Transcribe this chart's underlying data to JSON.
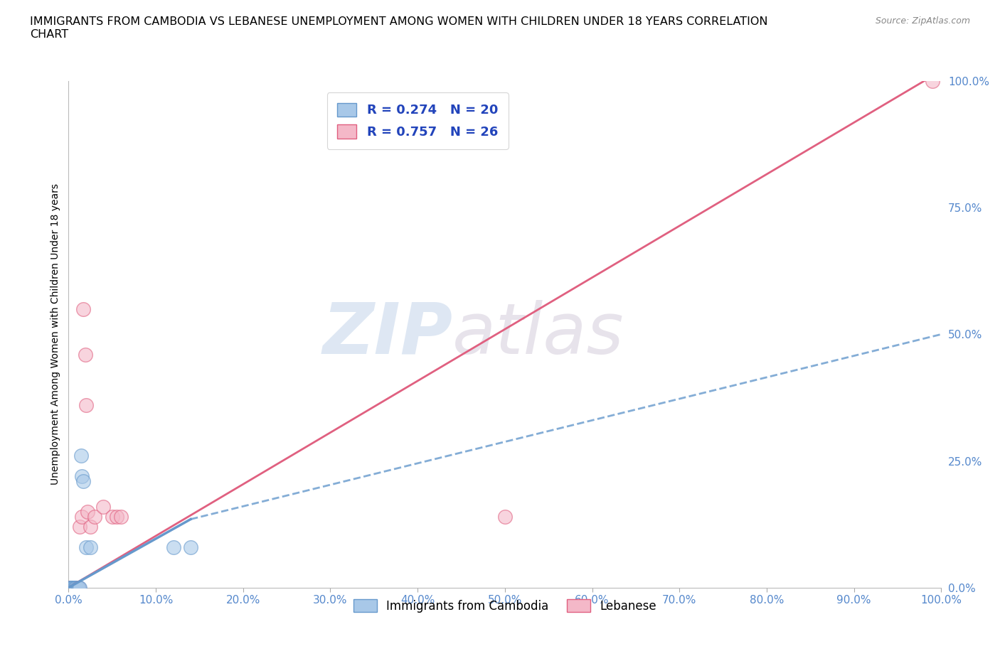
{
  "title": "IMMIGRANTS FROM CAMBODIA VS LEBANESE UNEMPLOYMENT AMONG WOMEN WITH CHILDREN UNDER 18 YEARS CORRELATION\nCHART",
  "source": "Source: ZipAtlas.com",
  "ylabel": "Unemployment Among Women with Children Under 18 years",
  "xlim": [
    0,
    1.0
  ],
  "ylim": [
    0,
    1.0
  ],
  "xticks": [
    0.0,
    0.1,
    0.2,
    0.3,
    0.4,
    0.5,
    0.6,
    0.7,
    0.8,
    0.9,
    1.0
  ],
  "yticks_right": [
    0.0,
    0.25,
    0.5,
    0.75,
    1.0
  ],
  "background_color": "#ffffff",
  "watermark_zip": "ZIP",
  "watermark_atlas": "atlas",
  "cambodia_color": "#a8c8e8",
  "lebanese_color": "#f4b8c8",
  "cambodia_edge": "#6699cc",
  "lebanese_edge": "#e06080",
  "cambodia_scatter": [
    [
      0.001,
      0.0
    ],
    [
      0.002,
      0.0
    ],
    [
      0.003,
      0.0
    ],
    [
      0.004,
      0.0
    ],
    [
      0.005,
      0.0
    ],
    [
      0.006,
      0.0
    ],
    [
      0.007,
      0.0
    ],
    [
      0.008,
      0.0
    ],
    [
      0.009,
      0.0
    ],
    [
      0.01,
      0.0
    ],
    [
      0.011,
      0.0
    ],
    [
      0.012,
      0.0
    ],
    [
      0.013,
      0.0
    ],
    [
      0.014,
      0.26
    ],
    [
      0.015,
      0.22
    ],
    [
      0.017,
      0.21
    ],
    [
      0.02,
      0.08
    ],
    [
      0.025,
      0.08
    ],
    [
      0.12,
      0.08
    ],
    [
      0.14,
      0.08
    ]
  ],
  "lebanese_scatter": [
    [
      0.001,
      0.0
    ],
    [
      0.002,
      0.0
    ],
    [
      0.003,
      0.0
    ],
    [
      0.004,
      0.0
    ],
    [
      0.005,
      0.0
    ],
    [
      0.006,
      0.0
    ],
    [
      0.007,
      0.0
    ],
    [
      0.008,
      0.0
    ],
    [
      0.009,
      0.0
    ],
    [
      0.01,
      0.0
    ],
    [
      0.011,
      0.0
    ],
    [
      0.012,
      0.0
    ],
    [
      0.013,
      0.12
    ],
    [
      0.015,
      0.14
    ],
    [
      0.017,
      0.55
    ],
    [
      0.019,
      0.46
    ],
    [
      0.02,
      0.36
    ],
    [
      0.022,
      0.15
    ],
    [
      0.025,
      0.12
    ],
    [
      0.03,
      0.14
    ],
    [
      0.04,
      0.16
    ],
    [
      0.05,
      0.14
    ],
    [
      0.055,
      0.14
    ],
    [
      0.06,
      0.14
    ],
    [
      0.5,
      0.14
    ],
    [
      0.99,
      1.0
    ]
  ],
  "cambodia_R": 0.274,
  "cambodia_N": 20,
  "lebanese_R": 0.757,
  "lebanese_N": 26,
  "grid_color": "#cccccc",
  "line_color_cambodia": "#6699cc",
  "line_color_lebanese": "#e06080",
  "camb_line_x": [
    0.0,
    0.14,
    1.0
  ],
  "camb_line_y": [
    0.0,
    0.135,
    0.5
  ],
  "leb_line_x": [
    0.0,
    1.0
  ],
  "leb_line_y": [
    0.0,
    1.02
  ]
}
